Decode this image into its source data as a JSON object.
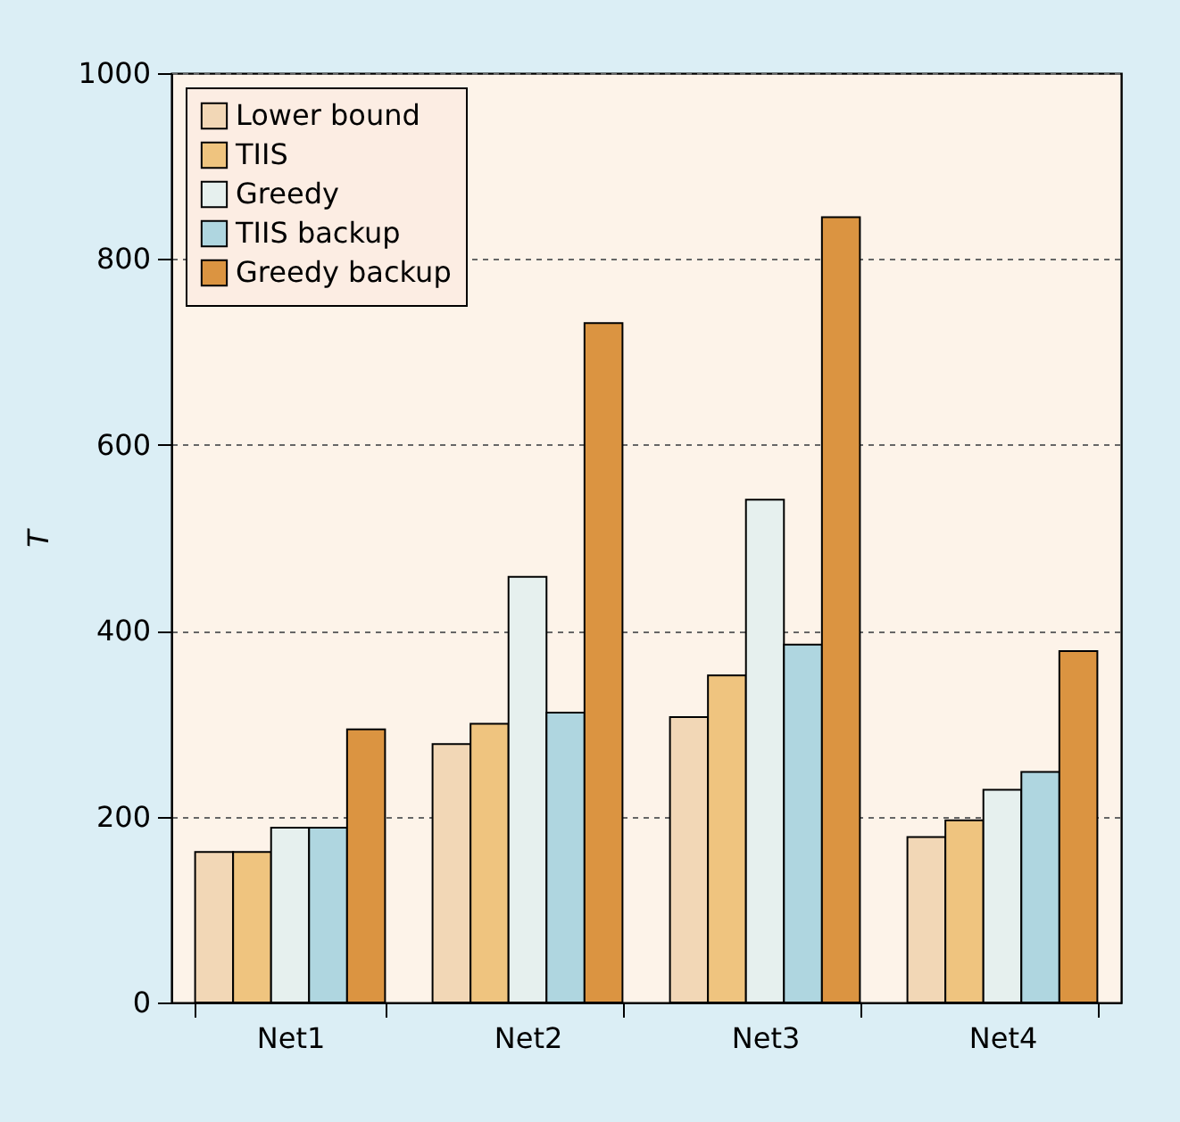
{
  "chart_data": {
    "type": "bar",
    "ylabel": "T",
    "categories": [
      "Net1",
      "Net2",
      "Net3",
      "Net4"
    ],
    "series": [
      {
        "name": "Lower bound",
        "color": "#f2d7b6",
        "values": [
          162,
          278,
          307,
          178
        ]
      },
      {
        "name": "TIIS",
        "color": "#efc47f",
        "values": [
          162,
          300,
          352,
          196
        ]
      },
      {
        "name": "Greedy",
        "color": "#e6f0ee",
        "values": [
          188,
          458,
          541,
          229
        ]
      },
      {
        "name": "TIIS backup",
        "color": "#afd6e0",
        "values": [
          188,
          312,
          385,
          248
        ]
      },
      {
        "name": "Greedy backup",
        "color": "#db9441",
        "values": [
          294,
          731,
          845,
          378
        ]
      }
    ],
    "ylim": [
      0,
      1000
    ],
    "yticks": [
      0,
      200,
      400,
      600,
      800,
      1000
    ],
    "grid": "y",
    "legend": "top left"
  }
}
